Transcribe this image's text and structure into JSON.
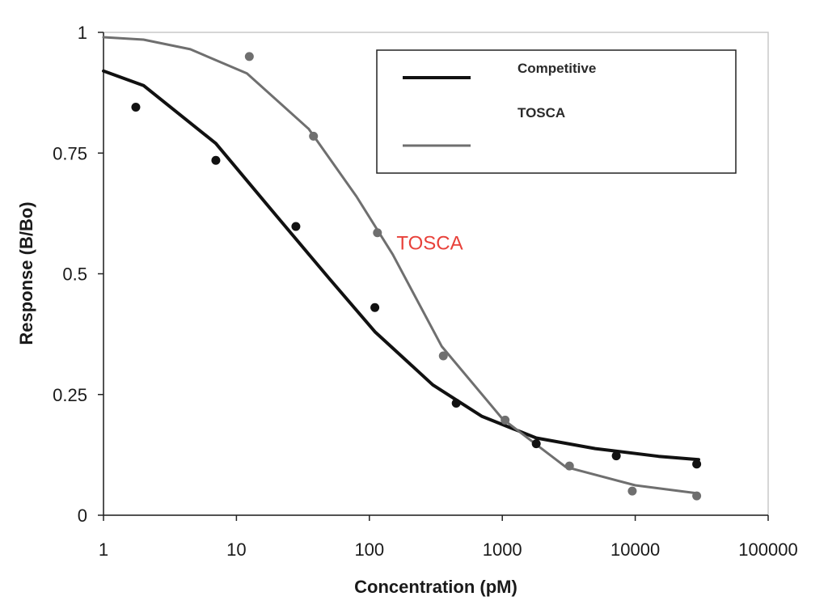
{
  "chart_data": {
    "type": "line",
    "title": "",
    "xlabel": "Concentration (pM)",
    "ylabel": "Response (B/Bo)",
    "xscale": "log",
    "xlim": [
      1,
      100000
    ],
    "ylim": [
      0,
      1
    ],
    "xticks": [
      "1",
      "10",
      "100",
      "1000",
      "10000",
      "100000"
    ],
    "yticks": [
      "0",
      "0.25",
      "0.5",
      "0.75",
      "1"
    ],
    "grid": false,
    "legend": {
      "position": "top-right",
      "entries": [
        "Competitive",
        "TOSCA"
      ]
    },
    "annotations": [
      {
        "text": "TOSCA",
        "x": 160,
        "y": 0.55,
        "color": "#e8413a"
      }
    ],
    "series": [
      {
        "name": "Competitive",
        "color": "#111111",
        "points_x": [
          1.75,
          7,
          28,
          110,
          450,
          1800,
          7200,
          29000
        ],
        "points_y": [
          0.845,
          0.735,
          0.598,
          0.43,
          0.232,
          0.148,
          0.123,
          0.106
        ],
        "curve_x": [
          1,
          2,
          7,
          20,
          50,
          110,
          300,
          700,
          1800,
          5000,
          15000,
          30000
        ],
        "curve_y": [
          0.92,
          0.89,
          0.77,
          0.62,
          0.49,
          0.38,
          0.27,
          0.205,
          0.16,
          0.138,
          0.122,
          0.115
        ]
      },
      {
        "name": "TOSCA",
        "color": "#6f6f6f",
        "points_x": [
          12.5,
          38,
          115,
          360,
          1050,
          3200,
          9500,
          29000
        ],
        "points_y": [
          0.95,
          0.785,
          0.585,
          0.33,
          0.197,
          0.102,
          0.05,
          0.04
        ],
        "curve_x": [
          1,
          2,
          4.5,
          12,
          35,
          80,
          150,
          350,
          1000,
          3000,
          10000,
          30000
        ],
        "curve_y": [
          0.99,
          0.985,
          0.965,
          0.915,
          0.8,
          0.66,
          0.54,
          0.35,
          0.2,
          0.1,
          0.062,
          0.045
        ]
      }
    ]
  }
}
